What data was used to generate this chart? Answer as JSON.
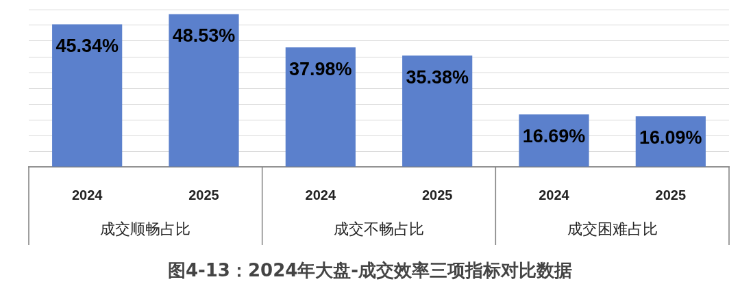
{
  "chart_data": {
    "type": "bar",
    "title": "图4-13：2024年大盘-成交效率三项指标对比数据",
    "categories": [
      "2024",
      "2025",
      "2024",
      "2025",
      "2024",
      "2025"
    ],
    "values": [
      45.34,
      48.53,
      37.98,
      35.38,
      16.69,
      16.09
    ],
    "value_labels": [
      "45.34%",
      "48.53%",
      "37.98%",
      "35.38%",
      "16.69%",
      "16.09%"
    ],
    "color": "#5b80cc",
    "annotations": [
      "成交顺畅占比",
      "成交不畅占比",
      "成交困难占比"
    ],
    "grid": "y",
    "legend": false
  }
}
